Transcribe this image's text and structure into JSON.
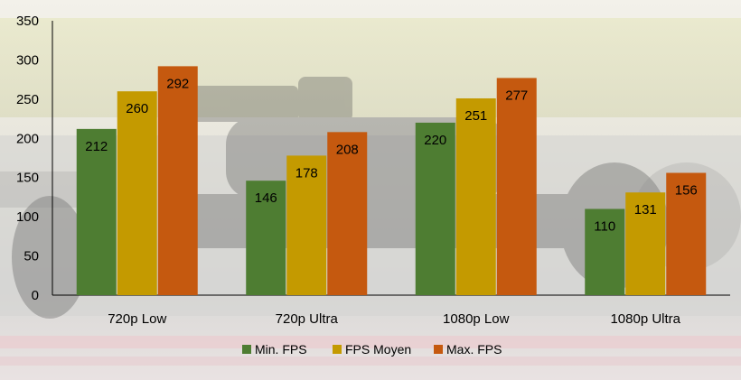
{
  "chart_data": {
    "type": "bar",
    "categories": [
      "720p Low",
      "720p Ultra",
      "1080p Low",
      "1080p Ultra"
    ],
    "series": [
      {
        "name": "Min. FPS",
        "values": [
          212,
          146,
          220,
          110
        ],
        "color": "#4e7d32"
      },
      {
        "name": "FPS Moyen",
        "values": [
          260,
          178,
          251,
          131
        ],
        "color": "#c49a00"
      },
      {
        "name": "Max. FPS",
        "values": [
          292,
          208,
          277,
          156
        ],
        "color": "#c5590f"
      }
    ],
    "ylim": [
      0,
      350
    ],
    "yticks": [
      0,
      50,
      100,
      150,
      200,
      250,
      300,
      350
    ],
    "legend_position": "bottom",
    "grid": false,
    "background": "photo of a Formula 1 car on a race track (faded)"
  }
}
